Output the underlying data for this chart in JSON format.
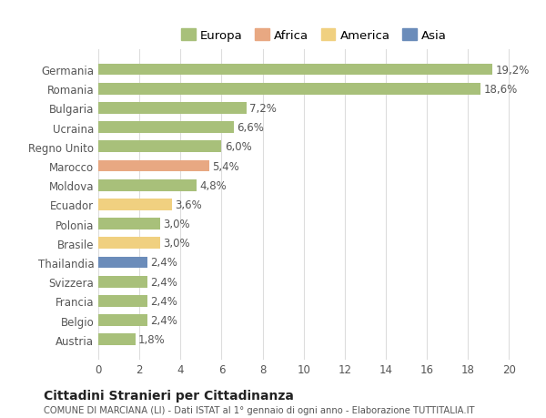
{
  "categories": [
    "Germania",
    "Romania",
    "Bulgaria",
    "Ucraina",
    "Regno Unito",
    "Marocco",
    "Moldova",
    "Ecuador",
    "Polonia",
    "Brasile",
    "Thailandia",
    "Svizzera",
    "Francia",
    "Belgio",
    "Austria"
  ],
  "values": [
    19.2,
    18.6,
    7.2,
    6.6,
    6.0,
    5.4,
    4.8,
    3.6,
    3.0,
    3.0,
    2.4,
    2.4,
    2.4,
    2.4,
    1.8
  ],
  "labels": [
    "19,2%",
    "18,6%",
    "7,2%",
    "6,6%",
    "6,0%",
    "5,4%",
    "4,8%",
    "3,6%",
    "3,0%",
    "3,0%",
    "2,4%",
    "2,4%",
    "2,4%",
    "2,4%",
    "1,8%"
  ],
  "bar_colors": [
    "#a8c07a",
    "#a8c07a",
    "#a8c07a",
    "#a8c07a",
    "#a8c07a",
    "#e8a882",
    "#a8c07a",
    "#f0d080",
    "#a8c07a",
    "#f0d080",
    "#6b8cba",
    "#a8c07a",
    "#a8c07a",
    "#a8c07a",
    "#a8c07a"
  ],
  "legend_labels": [
    "Europa",
    "Africa",
    "America",
    "Asia"
  ],
  "legend_colors": [
    "#a8c07a",
    "#e8a882",
    "#f0d080",
    "#6b8cba"
  ],
  "xlim": [
    0,
    21
  ],
  "xticks": [
    0,
    2,
    4,
    6,
    8,
    10,
    12,
    14,
    16,
    18,
    20
  ],
  "title": "Cittadini Stranieri per Cittadinanza",
  "subtitle": "COMUNE DI MARCIANA (LI) - Dati ISTAT al 1° gennaio di ogni anno - Elaborazione TUTTITALIA.IT",
  "background_color": "#ffffff",
  "grid_color": "#dddddd",
  "bar_height": 0.6,
  "label_fontsize": 8.5,
  "tick_fontsize": 8.5
}
